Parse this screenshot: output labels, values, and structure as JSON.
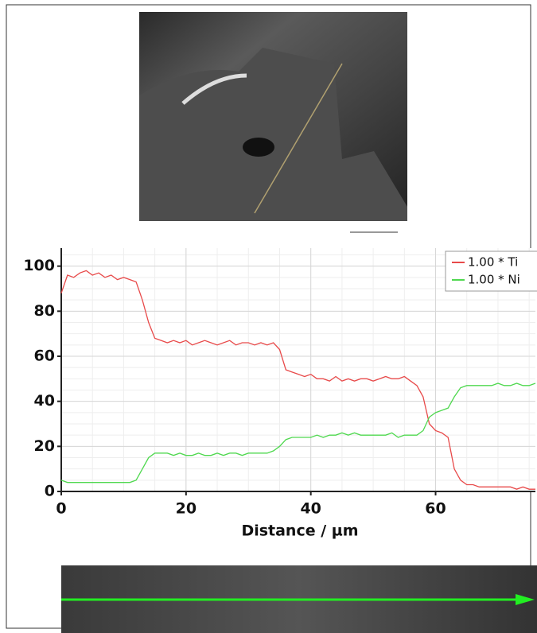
{
  "chart_data": {
    "type": "line",
    "xlabel": "Distance / µm",
    "x": [
      0,
      1,
      2,
      3,
      4,
      5,
      6,
      7,
      8,
      9,
      10,
      11,
      12,
      13,
      14,
      15,
      16,
      17,
      18,
      19,
      20,
      21,
      22,
      23,
      24,
      25,
      26,
      27,
      28,
      29,
      30,
      31,
      32,
      33,
      34,
      35,
      36,
      37,
      38,
      39,
      40,
      41,
      42,
      43,
      44,
      45,
      46,
      47,
      48,
      49,
      50,
      51,
      52,
      53,
      54,
      55,
      56,
      57,
      58,
      59,
      60,
      61,
      62,
      63,
      64,
      65,
      66,
      67,
      68,
      69,
      70,
      71,
      72,
      73,
      74,
      75,
      76
    ],
    "series": [
      {
        "name": "1.00 * Ti",
        "color": "#e84a4a",
        "values": [
          88,
          96,
          95,
          97,
          98,
          96,
          97,
          95,
          96,
          94,
          95,
          94,
          93,
          85,
          75,
          68,
          67,
          66,
          67,
          66,
          67,
          65,
          66,
          67,
          66,
          65,
          66,
          67,
          65,
          66,
          66,
          65,
          66,
          65,
          66,
          63,
          54,
          53,
          52,
          51,
          52,
          50,
          50,
          49,
          51,
          49,
          50,
          49,
          50,
          50,
          49,
          50,
          51,
          50,
          50,
          51,
          49,
          47,
          42,
          30,
          27,
          26,
          24,
          10,
          5,
          3,
          3,
          2,
          2,
          2,
          2,
          2,
          2,
          1,
          2,
          1,
          1
        ]
      },
      {
        "name": "1.00 * Ni",
        "color": "#4fd84f",
        "values": [
          5,
          4,
          4,
          4,
          4,
          4,
          4,
          4,
          4,
          4,
          4,
          4,
          5,
          10,
          15,
          17,
          17,
          17,
          16,
          17,
          16,
          16,
          17,
          16,
          16,
          17,
          16,
          17,
          17,
          16,
          17,
          17,
          17,
          17,
          18,
          20,
          23,
          24,
          24,
          24,
          24,
          25,
          24,
          25,
          25,
          26,
          25,
          26,
          25,
          25,
          25,
          25,
          25,
          26,
          24,
          25,
          25,
          25,
          27,
          33,
          35,
          36,
          37,
          42,
          46,
          47,
          47,
          47,
          47,
          47,
          48,
          47,
          47,
          48,
          47,
          47,
          48
        ]
      }
    ],
    "xlim": [
      0,
      76
    ],
    "xticks": [
      0,
      20,
      40,
      60
    ],
    "ylim": [
      0,
      108
    ],
    "yticks": [
      0,
      20,
      40,
      60,
      80,
      100
    ],
    "grid": true,
    "legend": "upper right"
  }
}
